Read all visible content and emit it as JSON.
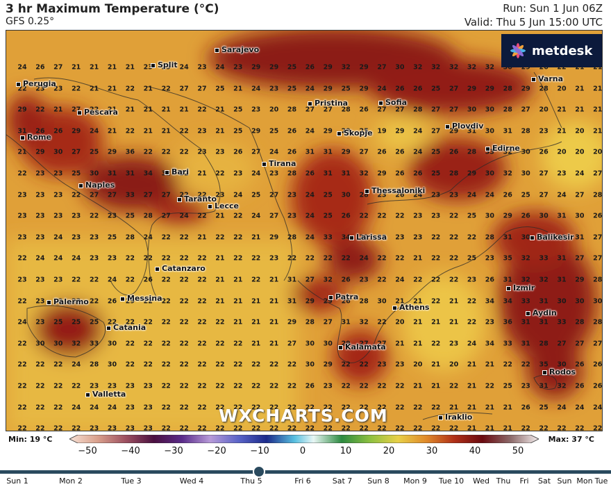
{
  "header": {
    "title": "3 hr Maximum Temperature (°C)",
    "model": "GFS 0.25°",
    "run": "Run: Sun 1 Jun 06Z",
    "valid": "Valid: Thu 5 Jun 15:00 UTC"
  },
  "logo": {
    "text": "metdesk",
    "icon": "metdesk-star-icon"
  },
  "watermark": "WXCHARTS.COM",
  "cities": [
    "Sarajevo",
    "Split",
    "Perugia",
    "Pristina",
    "Sofia",
    "Varna",
    "Pescara",
    "Skopje",
    "Plovdiv",
    "Rome",
    "Edirne",
    "Tirana",
    "Bari",
    "Naples",
    "Thessaloniki",
    "Taranto",
    "Lecce",
    "Larissa",
    "Balikesir",
    "Catanzaro",
    "Izmir",
    "Palermo",
    "Messina",
    "Patra",
    "Athens",
    "Aydin",
    "Catania",
    "Kalamata",
    "Rodos",
    "Valletta",
    "Iraklio"
  ],
  "grid": [
    [
      24,
      26,
      27,
      21,
      21,
      21,
      21,
      23,
      23,
      24,
      23,
      24,
      23,
      29,
      29,
      25,
      26,
      29,
      32,
      29,
      27,
      30,
      32,
      32,
      32,
      32,
      32,
      30,
      29,
      26,
      22,
      21,
      21
    ],
    [
      22,
      23,
      23,
      22,
      21,
      21,
      22,
      21,
      22,
      27,
      27,
      25,
      21,
      24,
      23,
      25,
      24,
      29,
      25,
      29,
      24,
      26,
      26,
      25,
      27,
      29,
      29,
      28,
      29,
      28,
      20,
      21,
      21
    ],
    [
      29,
      22,
      21,
      27,
      22,
      21,
      21,
      21,
      21,
      21,
      22,
      21,
      25,
      23,
      20,
      28,
      27,
      27,
      28,
      26,
      27,
      27,
      28,
      27,
      27,
      30,
      30,
      28,
      27,
      20,
      21,
      21,
      21
    ],
    [
      31,
      26,
      26,
      29,
      24,
      21,
      22,
      21,
      21,
      22,
      23,
      21,
      25,
      29,
      25,
      26,
      24,
      29,
      29,
      25,
      19,
      29,
      24,
      27,
      29,
      31,
      30,
      31,
      28,
      23,
      21,
      20,
      21
    ],
    [
      21,
      29,
      30,
      27,
      25,
      29,
      36,
      22,
      22,
      22,
      23,
      23,
      26,
      27,
      24,
      26,
      31,
      31,
      29,
      27,
      26,
      26,
      24,
      25,
      26,
      28,
      33,
      32,
      30,
      26,
      20,
      20,
      20
    ],
    [
      22,
      23,
      23,
      25,
      30,
      31,
      31,
      34,
      32,
      32,
      21,
      22,
      23,
      24,
      23,
      28,
      26,
      31,
      31,
      32,
      29,
      26,
      26,
      25,
      28,
      29,
      30,
      32,
      30,
      27,
      23,
      24,
      27
    ],
    [
      23,
      23,
      23,
      22,
      27,
      27,
      33,
      27,
      27,
      22,
      22,
      23,
      24,
      25,
      27,
      23,
      24,
      25,
      30,
      28,
      23,
      26,
      24,
      23,
      23,
      24,
      24,
      26,
      25,
      27,
      24,
      27,
      28
    ],
    [
      23,
      23,
      23,
      23,
      22,
      23,
      25,
      28,
      27,
      24,
      22,
      21,
      22,
      24,
      27,
      23,
      24,
      25,
      26,
      22,
      22,
      22,
      23,
      23,
      22,
      25,
      30,
      29,
      26,
      30,
      31,
      30,
      26
    ],
    [
      23,
      23,
      24,
      23,
      23,
      25,
      28,
      24,
      22,
      22,
      21,
      22,
      22,
      21,
      29,
      28,
      24,
      33,
      34,
      22,
      23,
      23,
      23,
      22,
      22,
      22,
      28,
      31,
      30,
      32,
      31,
      31,
      27
    ],
    [
      22,
      24,
      24,
      24,
      23,
      23,
      22,
      22,
      22,
      22,
      22,
      21,
      22,
      22,
      23,
      22,
      22,
      22,
      22,
      24,
      22,
      22,
      21,
      22,
      22,
      25,
      23,
      35,
      32,
      33,
      31,
      27,
      27
    ],
    [
      23,
      23,
      23,
      22,
      22,
      24,
      22,
      26,
      22,
      22,
      22,
      21,
      21,
      22,
      21,
      31,
      27,
      32,
      26,
      23,
      22,
      24,
      22,
      22,
      22,
      23,
      26,
      31,
      32,
      32,
      31,
      29,
      28
    ],
    [
      22,
      23,
      22,
      23,
      22,
      26,
      29,
      22,
      22,
      22,
      22,
      21,
      21,
      21,
      21,
      31,
      29,
      29,
      26,
      28,
      30,
      21,
      21,
      22,
      21,
      22,
      34,
      34,
      33,
      31,
      30,
      30,
      30
    ],
    [
      24,
      23,
      25,
      25,
      25,
      22,
      22,
      22,
      22,
      22,
      22,
      22,
      21,
      21,
      21,
      29,
      28,
      27,
      31,
      32,
      22,
      20,
      21,
      21,
      21,
      22,
      23,
      36,
      31,
      31,
      33,
      28,
      28
    ],
    [
      22,
      30,
      30,
      32,
      33,
      30,
      22,
      22,
      22,
      22,
      22,
      22,
      22,
      21,
      21,
      27,
      30,
      30,
      29,
      27,
      27,
      21,
      21,
      22,
      23,
      24,
      34,
      33,
      31,
      28,
      27,
      27,
      27
    ],
    [
      22,
      22,
      22,
      24,
      28,
      30,
      22,
      22,
      22,
      22,
      22,
      22,
      22,
      22,
      22,
      22,
      30,
      29,
      22,
      22,
      23,
      23,
      20,
      21,
      20,
      21,
      21,
      22,
      22,
      35,
      30,
      26,
      26
    ],
    [
      22,
      22,
      22,
      22,
      23,
      23,
      23,
      23,
      22,
      22,
      22,
      22,
      22,
      22,
      22,
      22,
      26,
      23,
      22,
      22,
      22,
      22,
      21,
      21,
      22,
      21,
      22,
      25,
      23,
      31,
      32,
      26,
      26
    ],
    [
      22,
      22,
      22,
      24,
      24,
      24,
      23,
      23,
      22,
      22,
      22,
      22,
      22,
      22,
      22,
      22,
      22,
      22,
      22,
      22,
      22,
      22,
      22,
      22,
      21,
      21,
      21,
      21,
      26,
      25,
      24,
      24,
      24
    ],
    [
      22,
      22,
      22,
      22,
      23,
      23,
      23,
      23,
      22,
      22,
      22,
      22,
      22,
      22,
      22,
      22,
      22,
      22,
      22,
      22,
      22,
      22,
      22,
      22,
      22,
      21,
      21,
      21,
      22,
      22,
      22,
      22,
      22
    ],
    [
      23,
      22,
      22,
      22,
      22,
      22,
      22,
      22,
      22,
      22,
      22,
      22,
      22,
      22,
      22,
      22,
      22,
      22,
      22,
      22,
      22,
      22,
      22,
      22,
      22,
      21,
      21,
      21,
      22,
      22,
      22,
      22,
      22
    ]
  ],
  "scale": {
    "min_label": "Min: 19 °C",
    "max_label": "Max: 37 °C",
    "ticks": [
      "−50",
      "−40",
      "−30",
      "−20",
      "−10",
      "0",
      "10",
      "20",
      "30",
      "40",
      "50"
    ]
  },
  "timeline": {
    "selected": "Thu 5",
    "days": [
      "Sun 1",
      "Mon 2",
      "Tue 3",
      "Wed 4",
      "Thu 5",
      "Fri 6",
      "Sat 7",
      "Sun 8",
      "Mon 9",
      "Tue 10",
      "Wed",
      "Thu",
      "Fri",
      "Sat",
      "Sun",
      "Mon",
      "Tue"
    ]
  }
}
